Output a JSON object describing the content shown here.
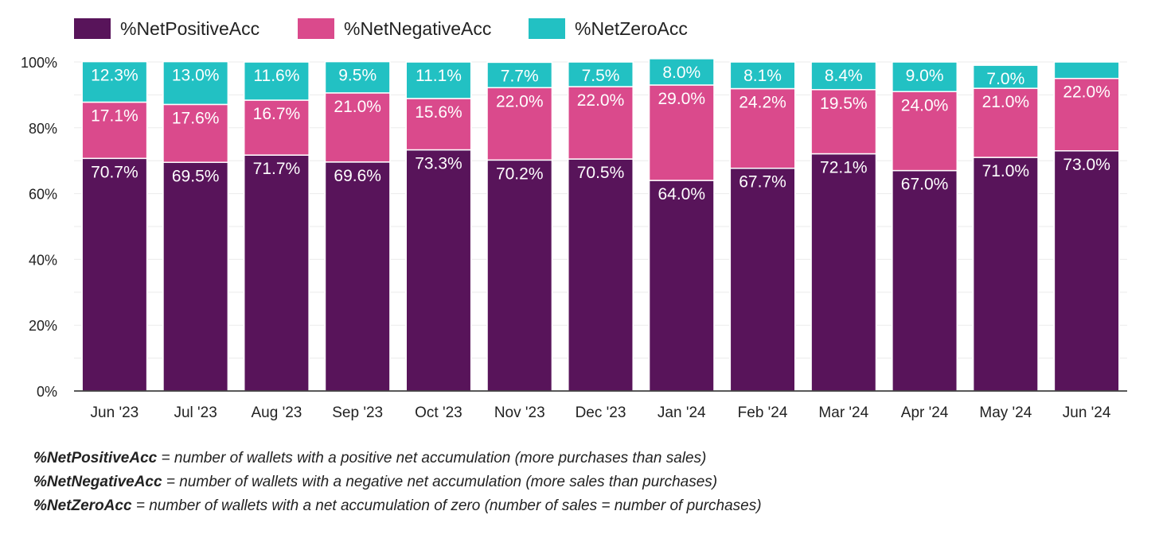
{
  "chart_data": {
    "type": "bar",
    "stacked": true,
    "categories": [
      "Jun '23",
      "Jul '23",
      "Aug '23",
      "Sep '23",
      "Oct '23",
      "Nov '23",
      "Dec '23",
      "Jan '24",
      "Feb '24",
      "Mar '24",
      "Apr '24",
      "May '24",
      "Jun '24"
    ],
    "series": [
      {
        "name": "%NetPositiveAcc",
        "color": "#58145a",
        "values": [
          70.7,
          69.5,
          71.7,
          69.6,
          73.3,
          70.2,
          70.5,
          64.0,
          67.7,
          72.1,
          67.0,
          71.0,
          73.0
        ],
        "labels": [
          "70.7%",
          "69.5%",
          "71.7%",
          "69.6%",
          "73.3%",
          "70.2%",
          "70.5%",
          "64.0%",
          "67.7%",
          "72.1%",
          "67.0%",
          "71.0%",
          "73.0%"
        ]
      },
      {
        "name": "%NetNegativeAcc",
        "color": "#da4a8c",
        "values": [
          17.1,
          17.6,
          16.7,
          21.0,
          15.6,
          22.0,
          22.0,
          29.0,
          24.2,
          19.5,
          24.0,
          21.0,
          22.0
        ],
        "labels": [
          "17.1%",
          "17.6%",
          "16.7%",
          "21.0%",
          "15.6%",
          "22.0%",
          "22.0%",
          "29.0%",
          "24.2%",
          "19.5%",
          "24.0%",
          "21.0%",
          "22.0%"
        ]
      },
      {
        "name": "%NetZeroAcc",
        "color": "#22c1c3",
        "values": [
          12.3,
          13.0,
          11.6,
          9.5,
          11.1,
          7.7,
          7.5,
          8.0,
          8.1,
          8.4,
          9.0,
          7.0,
          5.0
        ],
        "labels": [
          "12.3%",
          "13.0%",
          "11.6%",
          "9.5%",
          "11.1%",
          "7.7%",
          "7.5%",
          "8.0%",
          "8.1%",
          "8.4%",
          "9.0%",
          "7.0%",
          ""
        ]
      }
    ],
    "yticks": [
      "0%",
      "20%",
      "40%",
      "60%",
      "80%",
      "100%"
    ],
    "ylim": [
      0,
      100
    ],
    "grid": true,
    "legend_position": "top-left"
  },
  "notes": [
    {
      "term": "%NetPositiveAcc",
      "definition": " = number of wallets with a positive net accumulation (more purchases than sales)"
    },
    {
      "term": "%NetNegativeAcc",
      "definition": " = number of wallets with a negative net accumulation (more sales than purchases)"
    },
    {
      "term": "%NetZeroAcc",
      "definition": " = number of wallets with a net accumulation of zero (number of sales = number of purchases)"
    }
  ]
}
